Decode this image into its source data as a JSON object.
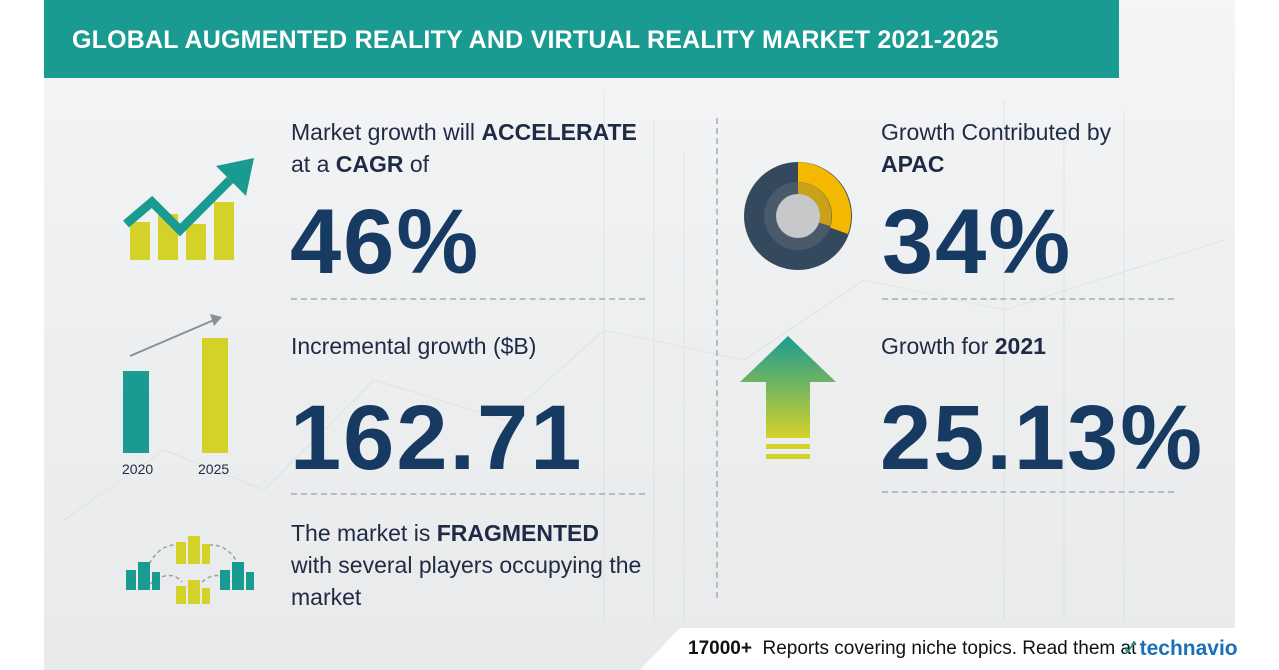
{
  "header": {
    "title": "GLOBAL AUGMENTED REALITY AND VIRTUAL REALITY MARKET 2021-2025"
  },
  "cagr": {
    "line1_prefix": "Market growth will ",
    "line1_bold": "ACCELERATE",
    "line2_prefix": "at a ",
    "line2_bold": "CAGR",
    "line2_suffix": " of",
    "value": "46%"
  },
  "incremental": {
    "label": "Incremental growth ($B)",
    "value": "162.71",
    "year_start": "2020",
    "year_end": "2025",
    "bar_start_fraction": 0.7,
    "bar_end_fraction": 1.0
  },
  "fragmented": {
    "line1_prefix": "The market is ",
    "line1_bold": "FRAGMENTED",
    "line2": "with several players occupying the",
    "line3": "market"
  },
  "region": {
    "line1": "Growth Contributed by",
    "line2_bold": "APAC",
    "value": "34%",
    "share_fraction": 0.34
  },
  "yoy": {
    "label_prefix": "Growth for ",
    "label_bold": "2021",
    "value": "25.13%"
  },
  "footer": {
    "count": "17000+",
    "text": "Reports covering niche topics. Read them at",
    "brand": "technavio"
  },
  "colors": {
    "teal": "#1a9b91",
    "lime": "#d4d22a",
    "navy": "#173a63",
    "donut_dark": "#34495e",
    "donut_yellow": "#f5b800"
  }
}
